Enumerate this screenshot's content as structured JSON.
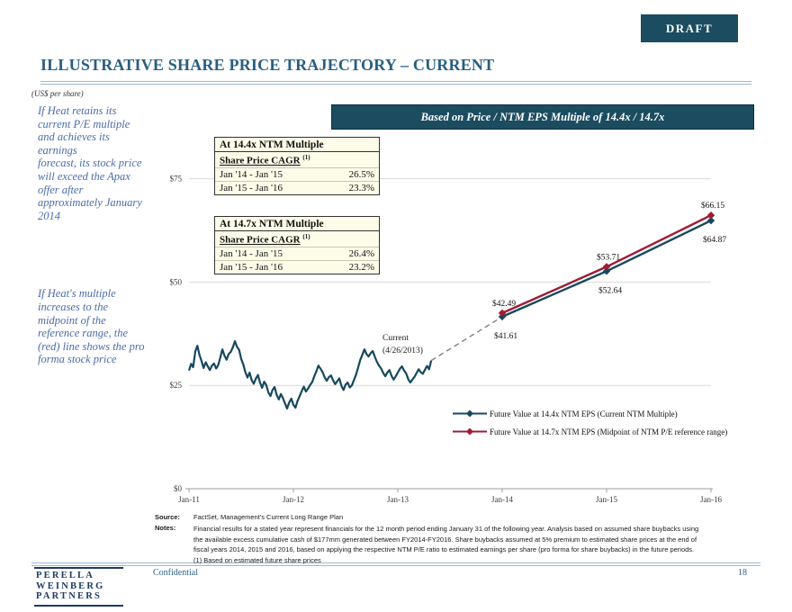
{
  "draft_label": "DRAFT",
  "title": "ILLUSTRATIVE SHARE PRICE TRAJECTORY – CURRENT",
  "subtitle": "(US$ per share)",
  "sidebar": {
    "para1_lines": [
      "If  Heat retains its",
      "current P/E multiple",
      "and achieves its",
      "earnings",
      "forecast, its stock price",
      "will exceed the Apax",
      "offer after",
      "approximately January",
      "2014"
    ],
    "para2_lines": [
      "If  Heat's multiple",
      "increases to the",
      "midpoint of  the",
      "reference range, the",
      "(red) line shows the pro",
      "forma stock price"
    ]
  },
  "banner": "Based on Price / NTM EPS Multiple of 14.4x / 14.7x",
  "tables": [
    {
      "header": "At 14.4x NTM Multiple",
      "sub": "Share Price CAGR",
      "sup": "(1)",
      "rows": [
        {
          "label": "Jan '14 - Jan '15",
          "value": "26.5%"
        },
        {
          "label": "Jan '15 - Jan '16",
          "value": "23.3%"
        }
      ]
    },
    {
      "header": "At 14.7x NTM Multiple",
      "sub": "Share Price CAGR",
      "sup": "(1)",
      "rows": [
        {
          "label": "Jan '14 - Jan '15",
          "value": "26.4%"
        },
        {
          "label": "Jan '15 - Jan '16",
          "value": "23.2%"
        }
      ]
    }
  ],
  "chart_data": {
    "type": "line",
    "title": "Based on Price / NTM EPS Multiple of 14.4x / 14.7x",
    "ylabel": "US$ per share",
    "y_axis": {
      "min": 0,
      "max": 87,
      "ticks": [
        {
          "v": 0,
          "label": "$0"
        },
        {
          "v": 25,
          "label": "$25"
        },
        {
          "v": 50,
          "label": "$50"
        },
        {
          "v": 75,
          "label": "$75"
        }
      ]
    },
    "x_axis": {
      "ticks": [
        {
          "t": 0,
          "label": "Jan-11"
        },
        {
          "t": 1,
          "label": "Jan-12"
        },
        {
          "t": 2,
          "label": "Jan-13"
        },
        {
          "t": 3,
          "label": "Jan-14"
        },
        {
          "t": 4,
          "label": "Jan-15"
        },
        {
          "t": 5,
          "label": "Jan-16"
        }
      ]
    },
    "grid": "horizontal",
    "legend_position": "inside-right-bottom",
    "historical": {
      "name": "Heat historical share price",
      "color": "#16485E",
      "points": [
        [
          0.0,
          28.6
        ],
        [
          0.02,
          30.2
        ],
        [
          0.04,
          29.4
        ],
        [
          0.06,
          33.2
        ],
        [
          0.08,
          34.6
        ],
        [
          0.1,
          32.4
        ],
        [
          0.12,
          30.9
        ],
        [
          0.14,
          29.2
        ],
        [
          0.16,
          30.6
        ],
        [
          0.18,
          29.6
        ],
        [
          0.2,
          28.7
        ],
        [
          0.22,
          29.8
        ],
        [
          0.24,
          30.3
        ],
        [
          0.26,
          29.1
        ],
        [
          0.28,
          29.9
        ],
        [
          0.3,
          31.8
        ],
        [
          0.32,
          33.7
        ],
        [
          0.34,
          32.2
        ],
        [
          0.36,
          31.2
        ],
        [
          0.38,
          32.6
        ],
        [
          0.4,
          33.1
        ],
        [
          0.42,
          34.2
        ],
        [
          0.44,
          35.7
        ],
        [
          0.46,
          34.3
        ],
        [
          0.48,
          33.6
        ],
        [
          0.5,
          31.4
        ],
        [
          0.52,
          30.1
        ],
        [
          0.54,
          28.2
        ],
        [
          0.56,
          26.9
        ],
        [
          0.58,
          28.1
        ],
        [
          0.6,
          26.3
        ],
        [
          0.62,
          25.4
        ],
        [
          0.64,
          26.6
        ],
        [
          0.66,
          27.5
        ],
        [
          0.68,
          25.7
        ],
        [
          0.7,
          24.4
        ],
        [
          0.72,
          25.9
        ],
        [
          0.74,
          25.1
        ],
        [
          0.76,
          23.3
        ],
        [
          0.78,
          22.4
        ],
        [
          0.8,
          23.9
        ],
        [
          0.82,
          24.6
        ],
        [
          0.84,
          22.7
        ],
        [
          0.86,
          21.6
        ],
        [
          0.88,
          22.9
        ],
        [
          0.9,
          21.9
        ],
        [
          0.92,
          20.6
        ],
        [
          0.94,
          19.4
        ],
        [
          0.96,
          20.9
        ],
        [
          0.98,
          21.8
        ],
        [
          1.0,
          20.3
        ],
        [
          1.02,
          19.6
        ],
        [
          1.04,
          21.2
        ],
        [
          1.06,
          22.4
        ],
        [
          1.08,
          23.6
        ],
        [
          1.1,
          24.7
        ],
        [
          1.12,
          23.5
        ],
        [
          1.14,
          24.2
        ],
        [
          1.16,
          25.1
        ],
        [
          1.18,
          25.8
        ],
        [
          1.2,
          27.2
        ],
        [
          1.22,
          28.4
        ],
        [
          1.24,
          29.8
        ],
        [
          1.26,
          29.0
        ],
        [
          1.28,
          28.2
        ],
        [
          1.3,
          26.9
        ],
        [
          1.32,
          26.1
        ],
        [
          1.34,
          27.0
        ],
        [
          1.36,
          27.4
        ],
        [
          1.38,
          26.2
        ],
        [
          1.4,
          25.3
        ],
        [
          1.42,
          26.0
        ],
        [
          1.44,
          26.7
        ],
        [
          1.46,
          24.9
        ],
        [
          1.48,
          23.9
        ],
        [
          1.5,
          25.2
        ],
        [
          1.52,
          25.7
        ],
        [
          1.54,
          24.5
        ],
        [
          1.56,
          25.0
        ],
        [
          1.58,
          26.3
        ],
        [
          1.6,
          27.6
        ],
        [
          1.62,
          29.3
        ],
        [
          1.64,
          31.1
        ],
        [
          1.66,
          32.4
        ],
        [
          1.68,
          33.7
        ],
        [
          1.7,
          32.6
        ],
        [
          1.72,
          32.0
        ],
        [
          1.74,
          32.8
        ],
        [
          1.76,
          33.3
        ],
        [
          1.78,
          31.9
        ],
        [
          1.8,
          30.7
        ],
        [
          1.82,
          29.8
        ],
        [
          1.84,
          29.1
        ],
        [
          1.86,
          28.0
        ],
        [
          1.88,
          27.2
        ],
        [
          1.9,
          28.1
        ],
        [
          1.92,
          28.7
        ],
        [
          1.94,
          27.3
        ],
        [
          1.96,
          26.4
        ],
        [
          1.98,
          27.2
        ],
        [
          2.0,
          28.1
        ],
        [
          2.02,
          29.0
        ],
        [
          2.04,
          29.6
        ],
        [
          2.06,
          28.6
        ],
        [
          2.08,
          27.9
        ],
        [
          2.1,
          26.5
        ],
        [
          2.12,
          25.7
        ],
        [
          2.14,
          26.4
        ],
        [
          2.16,
          27.1
        ],
        [
          2.18,
          28.0
        ],
        [
          2.2,
          28.9
        ],
        [
          2.22,
          28.2
        ],
        [
          2.24,
          27.8
        ],
        [
          2.26,
          28.8
        ],
        [
          2.28,
          29.7
        ],
        [
          2.3,
          28.9
        ],
        [
          2.32,
          31.0
        ]
      ]
    },
    "connector": {
      "style": "dashed",
      "color": "#7F7F7F",
      "from": [
        2.32,
        31.0
      ],
      "to": [
        3,
        41.61
      ]
    },
    "series": [
      {
        "name": "Future Value at 14.4x NTM EPS (Current NTM Multiple)",
        "color": "#16485E",
        "points": [
          {
            "t": 3,
            "v": 41.61,
            "label": "$41.61",
            "label_pos": "below"
          },
          {
            "t": 4,
            "v": 52.64,
            "label": "$52.64",
            "label_pos": "below"
          },
          {
            "t": 5,
            "v": 64.87,
            "label": "$64.87",
            "label_pos": "below"
          }
        ]
      },
      {
        "name": "Future Value at 14.7x NTM EPS (Midpoint of NTM P/E reference range)",
        "color": "#9E1C33",
        "points": [
          {
            "t": 3,
            "v": 42.49,
            "label": "$42.49",
            "label_pos": "above"
          },
          {
            "t": 4,
            "v": 53.71,
            "label": "$53.71",
            "label_pos": "above"
          },
          {
            "t": 5,
            "v": 66.15,
            "label": "$66.15",
            "label_pos": "above"
          }
        ]
      }
    ],
    "annotation": {
      "line1": "Current",
      "line2": "(4/26/2013)"
    }
  },
  "footer": {
    "source_label": "Source:",
    "source": "FactSet, Management's Current Long Range Plan",
    "notes_label": "Notes:",
    "notes_lines": [
      "Financial results for a stated year represent financials for the 12 month period ending January 31 of the following year. Analysis based on assumed share buybacks using",
      "the available excess cumulative cash of $177mm generated between FY2014-FY2016. Share buybacks assumed at 5% premium to estimated share prices at the end of",
      "fiscal years 2014, 2015 and 2016, based on applying the respective NTM P/E ratio to estimated earnings per share (pro forma for share buybacks) in the future periods.",
      "(1) Based on estimated future share prices"
    ],
    "confidential": "Confidential",
    "page": "18",
    "logo_lines": [
      "PERELLA",
      "WEINBERG",
      "PARTNERS"
    ]
  }
}
